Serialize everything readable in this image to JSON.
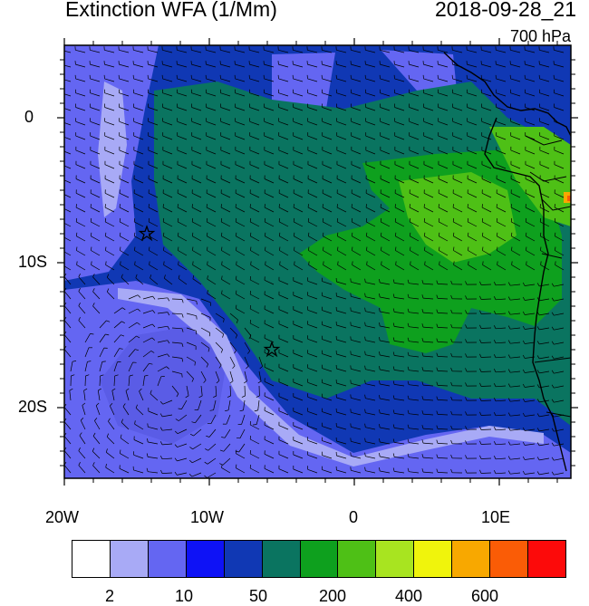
{
  "header": {
    "title": "Extinction WFA (1/Mm)",
    "valid_time": "2018-09-28_21",
    "level": "700 hPa"
  },
  "map": {
    "region": "southeast Atlantic / west Africa",
    "lat_tick_labels": [
      "0",
      "10S",
      "20S"
    ],
    "lon_tick_labels": [
      "20W",
      "10W",
      "0",
      "10E"
    ],
    "markers": [
      {
        "type": "star",
        "lon": -14.5,
        "lat": -8.0
      },
      {
        "type": "star",
        "lon": -5.7,
        "lat": -15.9
      }
    ],
    "overlay": "wind barbs"
  },
  "colorbar": {
    "colors": [
      "#ffffff",
      "#a8aaf6",
      "#6466f2",
      "#0e12f6",
      "#1038b4",
      "#0a7460",
      "#0ea01e",
      "#4ec016",
      "#a8e420",
      "#f0f40c",
      "#f8a800",
      "#fa5c06",
      "#fc0a0a"
    ],
    "tick_labels": [
      "2",
      "10",
      "50",
      "200",
      "400",
      "600"
    ]
  }
}
